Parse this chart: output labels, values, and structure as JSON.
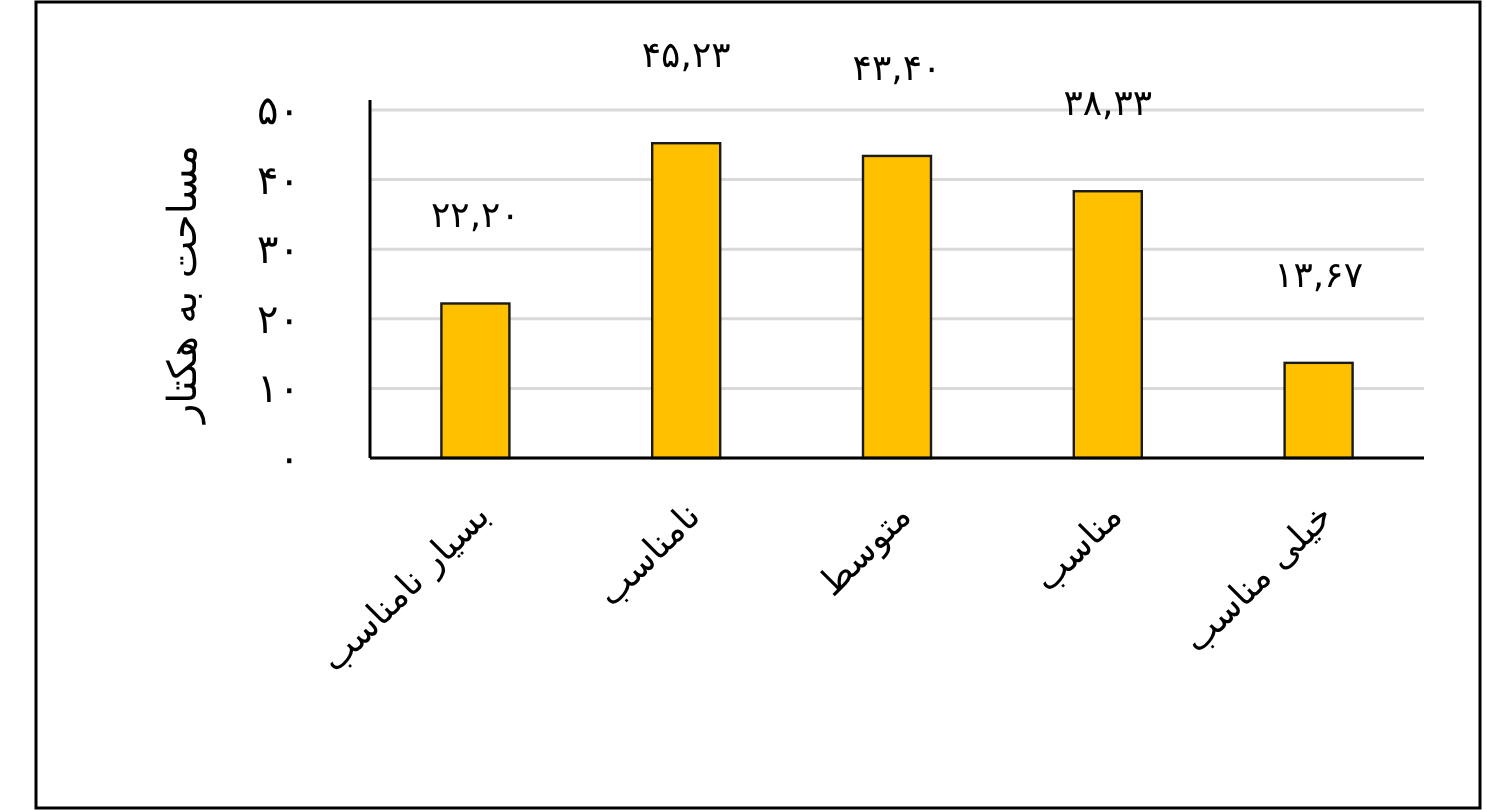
{
  "chart_data": {
    "type": "bar",
    "ylabel": "مساحت به هکتار",
    "categories": [
      "بسیار نامناسب",
      "نامناسب",
      "متوسط",
      "مناسب",
      "خیلی مناسب"
    ],
    "values": [
      22.2,
      45.23,
      43.4,
      38.33,
      13.67
    ],
    "value_labels": [
      "۲۲,۲۰",
      "۴۵,۲۳",
      "۴۳,۴۰",
      "۳۸,۳۳",
      "۱۳,۶۷"
    ],
    "color": "#ffc000",
    "ylim": [
      0,
      50
    ],
    "yticks": [
      {
        "value": 0,
        "label": "۰"
      },
      {
        "value": 10,
        "label": "۱۰"
      },
      {
        "value": 20,
        "label": "۲۰"
      },
      {
        "value": 30,
        "label": "۳۰"
      },
      {
        "value": 40,
        "label": "۴۰"
      },
      {
        "value": 50,
        "label": "۵۰"
      }
    ],
    "grid": "y"
  }
}
